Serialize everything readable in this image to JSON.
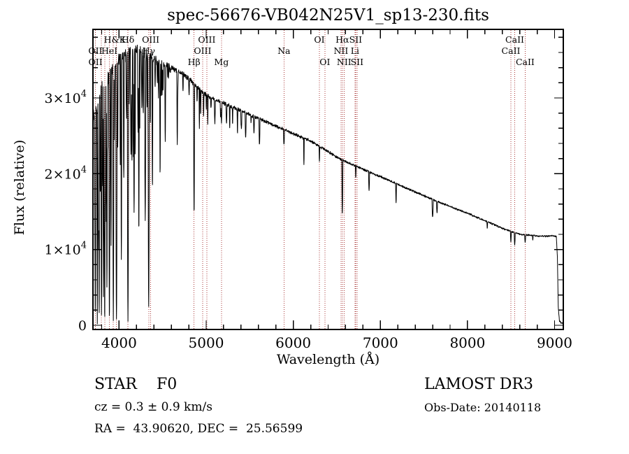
{
  "window": {
    "background": "#ffffff"
  },
  "annotations": {
    "star_type": "STAR    F0",
    "cz": "cz = 0.3 ± 0.9 km/s",
    "ra_dec": "RA =  43.90620, DEC =  25.56599",
    "survey": "LAMOST DR3",
    "obs_date": "Obs-Date: 20140118"
  },
  "chart_data": {
    "type": "line",
    "title": "spec-56676-VB042N25V1_sp13-230.fits",
    "xlabel": "Wavelength (Å)",
    "ylabel": "Flux (relative)",
    "xlim": [
      3700,
      9100
    ],
    "ylim": [
      0,
      39200
    ],
    "grid": false,
    "legend": "none",
    "x_major_ticks": [
      4000,
      5000,
      6000,
      7000,
      8000,
      9000
    ],
    "x_tick_labels": [
      "4000",
      "5000",
      "6000",
      "7000",
      "8000",
      "9000"
    ],
    "x_minor_step": 200,
    "y_major_ticks": [
      0,
      10000,
      20000,
      30000
    ],
    "y_tick_labels": [
      {
        "value": 0,
        "base": "0",
        "sup": ""
      },
      {
        "value": 10000,
        "base": "1×10",
        "sup": "4"
      },
      {
        "value": 20000,
        "base": "2×10",
        "sup": "4"
      },
      {
        "value": 30000,
        "base": "3×10",
        "sup": "4"
      }
    ],
    "y_minor_step": 2000,
    "spectrum_color": "#000000",
    "marker_line_color": "#aa3939",
    "dotted_lines": [
      3727,
      3729,
      3798,
      3835,
      3889,
      3934,
      3969,
      4102,
      4340,
      4363,
      4861,
      4959,
      5007,
      5175,
      5893,
      6300,
      6363,
      6548,
      6563,
      6583,
      6708,
      6716,
      6731,
      8498,
      8542,
      8662
    ],
    "line_labels": [
      {
        "text": "H&K",
        "wl": 3951,
        "row": 1
      },
      {
        "text": "Hδ",
        "wl": 4102,
        "row": 1
      },
      {
        "text": "OIII",
        "wl": 4363,
        "row": 1
      },
      {
        "text": "OIII",
        "wl": 5007,
        "row": 1
      },
      {
        "text": "OI",
        "wl": 6300,
        "row": 1
      },
      {
        "text": "Hα",
        "wl": 6563,
        "row": 1
      },
      {
        "text": "SII",
        "wl": 6716,
        "row": 1
      },
      {
        "text": "CaII",
        "wl": 8542,
        "row": 1
      },
      {
        "text": "OII",
        "wl": 3727,
        "row": 2
      },
      {
        "text": "HeI",
        "wl": 3889,
        "row": 2
      },
      {
        "text": "Hγ",
        "wl": 4340,
        "row": 2
      },
      {
        "text": "OIII",
        "wl": 4959,
        "row": 2
      },
      {
        "text": "Na",
        "wl": 5893,
        "row": 2
      },
      {
        "text": "NII",
        "wl": 6548,
        "row": 2
      },
      {
        "text": "Li",
        "wl": 6708,
        "row": 2
      },
      {
        "text": "CaII",
        "wl": 8498,
        "row": 2
      },
      {
        "text": "OII",
        "wl": 3729,
        "row": 3
      },
      {
        "text": "Hβ",
        "wl": 4861,
        "row": 3
      },
      {
        "text": "Mg",
        "wl": 5175,
        "row": 3
      },
      {
        "text": "OI",
        "wl": 6363,
        "row": 3
      },
      {
        "text": "NII",
        "wl": 6583,
        "row": 3
      },
      {
        "text": "SII",
        "wl": 6731,
        "row": 3
      },
      {
        "text": "CaII",
        "wl": 8662,
        "row": 3
      }
    ],
    "continuum": {
      "wl": [
        3700,
        3760,
        3820,
        3900,
        3980,
        4060,
        4140,
        4220,
        4300,
        4400,
        4500,
        4600,
        4700,
        4800,
        4861,
        4900,
        5000,
        5100,
        5200,
        5300,
        5400,
        5500,
        5600,
        5700,
        5800,
        5900,
        6000,
        6100,
        6200,
        6300,
        6400,
        6500,
        6600,
        6700,
        6800,
        6900,
        7000,
        7100,
        7200,
        7300,
        7400,
        7500,
        7600,
        7700,
        7800,
        7900,
        8000,
        8100,
        8200,
        8300,
        8400,
        8500,
        8600,
        8700,
        8800,
        8900,
        9000,
        9020,
        9032,
        9042,
        9055,
        9075,
        9100
      ],
      "flux": [
        27500,
        29500,
        31500,
        33500,
        34800,
        35600,
        36200,
        36300,
        35900,
        35100,
        34500,
        34000,
        33400,
        32600,
        31800,
        31400,
        30400,
        29800,
        29300,
        28800,
        28300,
        27800,
        27300,
        26800,
        26300,
        25800,
        25300,
        24800,
        24300,
        23600,
        22900,
        22200,
        21600,
        21100,
        20600,
        20100,
        19600,
        19100,
        18600,
        18100,
        17600,
        17100,
        16600,
        16100,
        15700,
        15200,
        14800,
        14300,
        13800,
        13300,
        12800,
        12400,
        12000,
        11900,
        11800,
        11750,
        11800,
        11700,
        9000,
        2500,
        600,
        350,
        300
      ]
    },
    "absorption_lines": [
      [
        3727,
        2000,
        6
      ],
      [
        3750,
        800,
        5
      ],
      [
        3771,
        1500,
        5
      ],
      [
        3798,
        1000,
        6
      ],
      [
        3820,
        3000,
        5
      ],
      [
        3835,
        800,
        6
      ],
      [
        3860,
        4000,
        5
      ],
      [
        3889,
        900,
        7
      ],
      [
        3934,
        1500,
        7
      ],
      [
        3970,
        800,
        8
      ],
      [
        4026,
        8000,
        5
      ],
      [
        4102,
        1200,
        8
      ],
      [
        4172,
        15000,
        6
      ],
      [
        4227,
        12000,
        5
      ],
      [
        4300,
        14000,
        7
      ],
      [
        4340,
        2800,
        8
      ],
      [
        4383,
        18000,
        5
      ],
      [
        4471,
        20000,
        5
      ],
      [
        4530,
        24000,
        5
      ],
      [
        4668,
        24000,
        5
      ],
      [
        4861,
        14600,
        6
      ],
      [
        4922,
        26000,
        4
      ],
      [
        5018,
        26500,
        4
      ],
      [
        5175,
        26800,
        7
      ],
      [
        5270,
        26000,
        4
      ],
      [
        5893,
        23800,
        6
      ],
      [
        6122,
        21000,
        4
      ],
      [
        6300,
        21500,
        4
      ],
      [
        6563,
        14700,
        6
      ],
      [
        6717,
        19500,
        4
      ],
      [
        6870,
        17800,
        6
      ],
      [
        7180,
        16200,
        5
      ],
      [
        7600,
        14300,
        8
      ],
      [
        7650,
        14800,
        6
      ],
      [
        8227,
        12800,
        4
      ],
      [
        8498,
        11000,
        5
      ],
      [
        8542,
        10600,
        6
      ],
      [
        8662,
        10900,
        6
      ],
      [
        8750,
        11300,
        4
      ]
    ],
    "noise": {
      "seed": 42,
      "amp_wl": [
        3700,
        3900,
        4100,
        4300,
        4500,
        4700,
        5000,
        5500,
        6000,
        6500,
        7000,
        7500,
        8000,
        8500,
        9000
      ],
      "amp": [
        2600,
        2200,
        1900,
        1500,
        1100,
        800,
        650,
        550,
        480,
        420,
        380,
        340,
        310,
        290,
        270
      ],
      "forest_end_wl": 4620
    }
  }
}
